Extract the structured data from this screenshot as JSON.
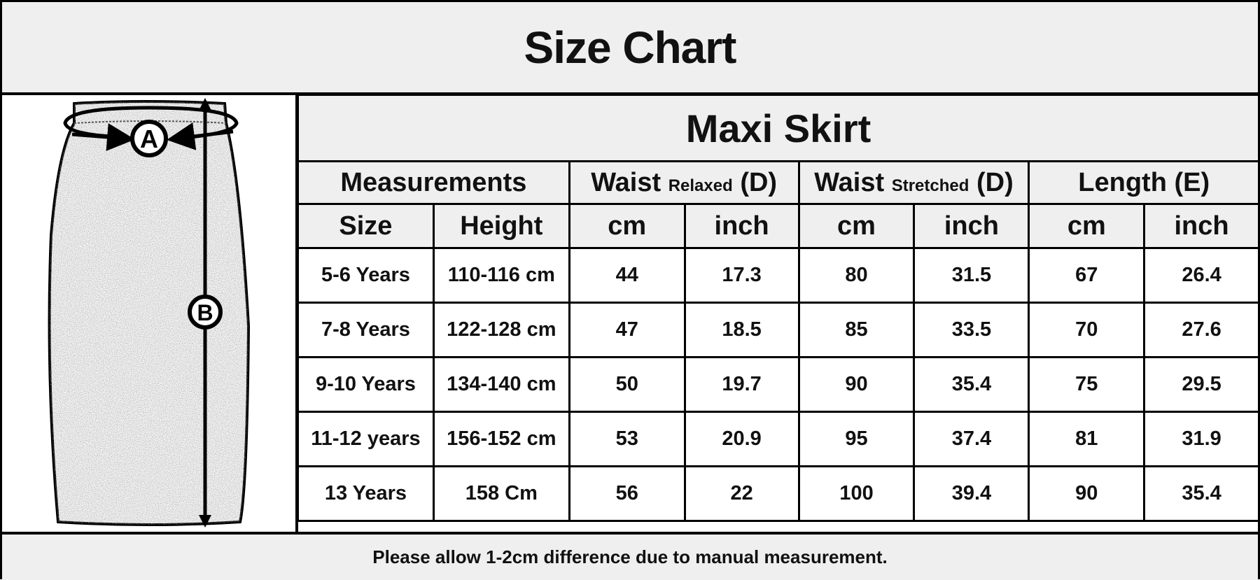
{
  "title": "Size Chart",
  "product": "Maxi Skirt",
  "diagram": {
    "labels": [
      "A",
      "B"
    ]
  },
  "headers": {
    "measurements": "Measurements",
    "waist_relaxed": {
      "main": "Waist",
      "sub": "Relaxed",
      "code": "(D)"
    },
    "waist_stretched": {
      "main": "Waist",
      "sub": "Stretched",
      "code": "(D)"
    },
    "length": "Length (E)"
  },
  "subheaders": [
    "Size",
    "Height",
    "cm",
    "inch",
    "cm",
    "inch",
    "cm",
    "inch"
  ],
  "rows": [
    [
      "5-6 Years",
      "110-116 cm",
      "44",
      "17.3",
      "80",
      "31.5",
      "67",
      "26.4"
    ],
    [
      "7-8 Years",
      "122-128 cm",
      "47",
      "18.5",
      "85",
      "33.5",
      "70",
      "27.6"
    ],
    [
      "9-10 Years",
      "134-140 cm",
      "50",
      "19.7",
      "90",
      "35.4",
      "75",
      "29.5"
    ],
    [
      "11-12 years",
      "156-152 cm",
      "53",
      "20.9",
      "95",
      "37.4",
      "81",
      "31.9"
    ],
    [
      "13 Years",
      "158 Cm",
      "56",
      "22",
      "100",
      "39.4",
      "90",
      "35.4"
    ]
  ],
  "footer": "Please allow 1-2cm difference due to manual measurement."
}
